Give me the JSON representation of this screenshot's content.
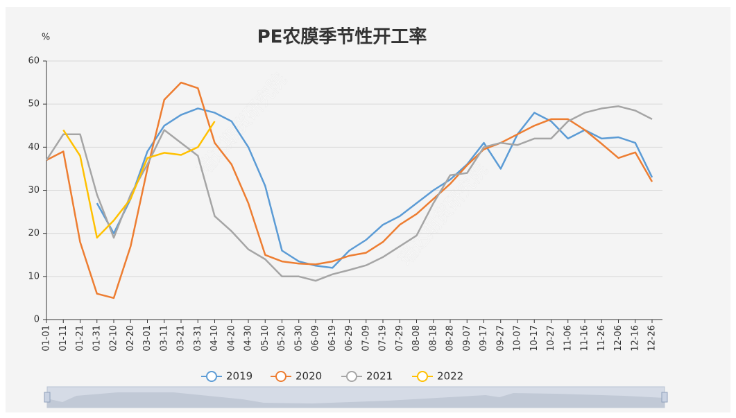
{
  "chart_data": {
    "type": "line",
    "title": "PE农膜季节性开工率",
    "y_label": "%",
    "watermark": "瑞达期货研究院",
    "categories": [
      "01-01",
      "01-11",
      "01-21",
      "01-31",
      "02-10",
      "02-20",
      "03-01",
      "03-11",
      "03-21",
      "03-31",
      "04-10",
      "04-20",
      "04-30",
      "05-10",
      "05-20",
      "05-30",
      "06-09",
      "06-19",
      "06-29",
      "07-09",
      "07-19",
      "07-29",
      "08-08",
      "08-18",
      "08-28",
      "09-07",
      "09-17",
      "09-27",
      "10-07",
      "10-17",
      "10-27",
      "11-06",
      "11-16",
      "11-26",
      "12-06",
      "12-16",
      "12-26"
    ],
    "series": [
      {
        "name": "2019",
        "color": "#5b9bd5",
        "values": [
          null,
          null,
          null,
          27,
          20,
          28,
          39,
          45,
          47.5,
          49,
          48,
          46,
          40,
          31,
          16,
          13.5,
          12.5,
          12,
          16,
          18.5,
          22,
          24,
          27,
          30,
          32.5,
          36,
          41,
          35,
          43,
          48,
          46,
          42,
          44,
          42,
          42.3,
          41,
          33
        ]
      },
      {
        "name": "2020",
        "color": "#ed7d31",
        "values": [
          37,
          39,
          18,
          6,
          5,
          17,
          35,
          51,
          55,
          53.7,
          41,
          36,
          27,
          15,
          13.5,
          13,
          12.8,
          13.5,
          14.8,
          15.5,
          18,
          22,
          24.5,
          28,
          31.5,
          35.8,
          39.5,
          41,
          43,
          45,
          46.5,
          46.5,
          44,
          40.8,
          37.5,
          38.8,
          32
        ]
      },
      {
        "name": "2021",
        "color": "#a5a5a5",
        "values": [
          37,
          43,
          43,
          29,
          19,
          29,
          36,
          44,
          41,
          38,
          24,
          20.5,
          16.3,
          14,
          10,
          10,
          9,
          10.5,
          11.5,
          12.6,
          14.5,
          17,
          19.5,
          27,
          33.5,
          34,
          40,
          41,
          40.5,
          42,
          42,
          46,
          48,
          49,
          49.5,
          48.5,
          46.5
        ]
      },
      {
        "name": "2022",
        "color": "#ffc000",
        "values": [
          null,
          44,
          38,
          19,
          23,
          28,
          37.5,
          38.7,
          38.2,
          40,
          46,
          null,
          null,
          null,
          null,
          null,
          null,
          null,
          null,
          null,
          null,
          null,
          null,
          null,
          null,
          null,
          null,
          null,
          null,
          null,
          null,
          null,
          null,
          null,
          null,
          null,
          null
        ]
      }
    ],
    "ylim": [
      0,
      60
    ],
    "yticks": [
      0,
      10,
      20,
      30,
      40,
      50,
      60
    ],
    "grid": true
  }
}
